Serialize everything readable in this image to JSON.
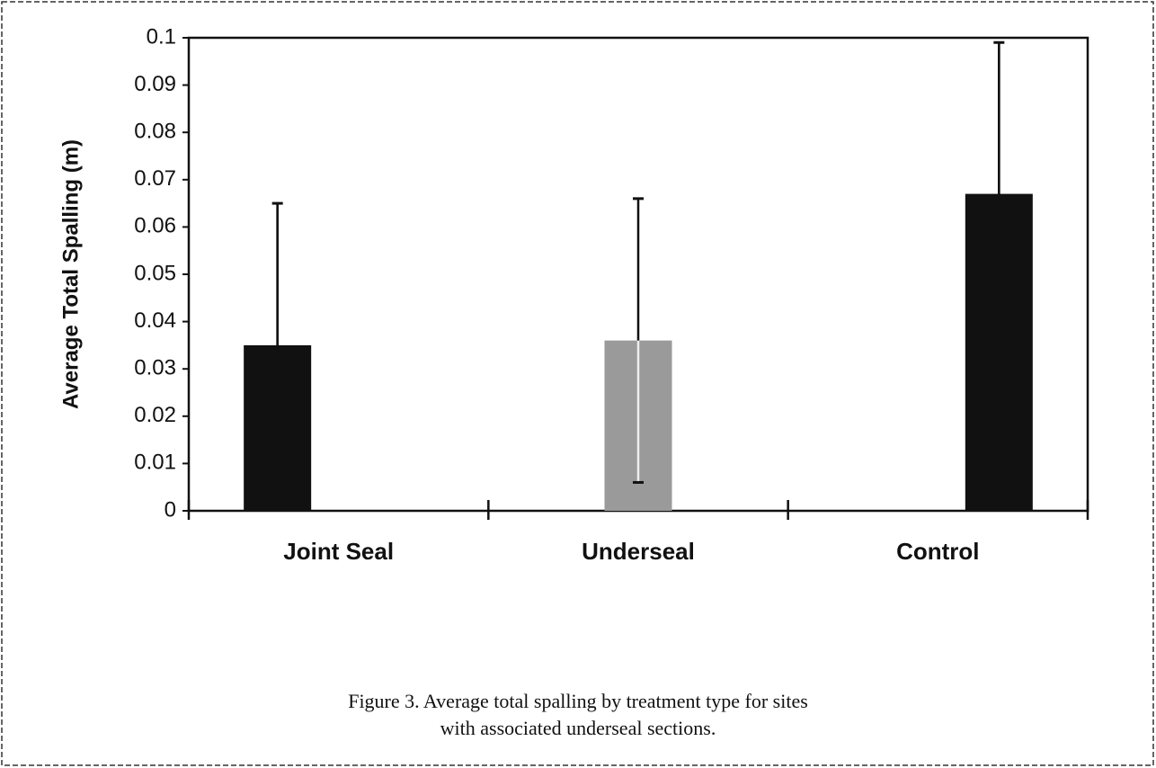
{
  "chart_data": {
    "type": "bar",
    "y_label": "Average Total Spalling (m)",
    "categories": [
      "Joint Seal",
      "Underseal",
      "Control"
    ],
    "values": [
      0.035,
      0.036,
      0.067
    ],
    "errors": [
      0.03,
      0.03,
      0.032
    ],
    "colors": [
      "#111111",
      "#9a9a9a",
      "#111111"
    ],
    "ylim": [
      0,
      0.1
    ],
    "yticks": [
      0,
      0.01,
      0.02,
      0.03,
      0.04,
      0.05,
      0.06,
      0.07,
      0.08,
      0.09,
      0.1
    ],
    "grid": false,
    "caption": [
      "Figure 3. Average total spalling by treatment type for sites",
      "with associated underseal sections."
    ]
  }
}
